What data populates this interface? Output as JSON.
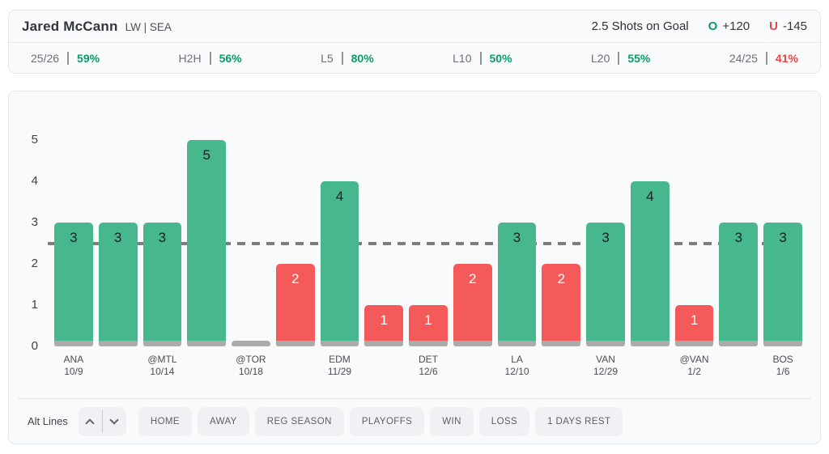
{
  "header": {
    "player_name": "Jared McCann",
    "player_meta": "LW | SEA",
    "prop_label": "2.5 Shots on Goal",
    "over": {
      "letter": "O",
      "odds": "+120"
    },
    "under": {
      "letter": "U",
      "odds": "-145"
    }
  },
  "stats": [
    {
      "label": "25/26",
      "value": "59%",
      "status": "positive"
    },
    {
      "label": "H2H",
      "value": "56%",
      "status": "positive"
    },
    {
      "label": "L5",
      "value": "80%",
      "status": "positive"
    },
    {
      "label": "L10",
      "value": "50%",
      "status": "positive"
    },
    {
      "label": "L20",
      "value": "55%",
      "status": "positive"
    },
    {
      "label": "24/25",
      "value": "41%",
      "status": "negative"
    }
  ],
  "chart_data": {
    "type": "bar",
    "title": "",
    "xlabel": "",
    "ylabel": "",
    "ylim": [
      0,
      5
    ],
    "yticks": [
      0,
      1,
      2,
      3,
      4,
      5
    ],
    "grid": false,
    "reference_line": 2.5,
    "bars": [
      {
        "value": 3,
        "result": "over",
        "team": "ANA",
        "date": "10/9"
      },
      {
        "value": 3,
        "result": "over"
      },
      {
        "value": 3,
        "result": "over",
        "team": "@MTL",
        "date": "10/14"
      },
      {
        "value": 5,
        "result": "over"
      },
      {
        "value": 0,
        "result": "under",
        "team": "@TOR",
        "date": "10/18"
      },
      {
        "value": 2,
        "result": "under"
      },
      {
        "value": 4,
        "result": "over",
        "team": "EDM",
        "date": "11/29"
      },
      {
        "value": 1,
        "result": "under"
      },
      {
        "value": 1,
        "result": "under",
        "team": "DET",
        "date": "12/6"
      },
      {
        "value": 2,
        "result": "under"
      },
      {
        "value": 3,
        "result": "over",
        "team": "LA",
        "date": "12/10"
      },
      {
        "value": 2,
        "result": "under"
      },
      {
        "value": 3,
        "result": "over",
        "team": "VAN",
        "date": "12/29"
      },
      {
        "value": 4,
        "result": "over"
      },
      {
        "value": 1,
        "result": "under",
        "team": "@VAN",
        "date": "1/2"
      },
      {
        "value": 3,
        "result": "over"
      },
      {
        "value": 3,
        "result": "over",
        "team": "BOS",
        "date": "1/6"
      }
    ]
  },
  "colors": {
    "accent_green": "#0a9c66",
    "accent_red": "#ee4343",
    "bar_over": "#47b78e",
    "bar_under": "#f45a5a",
    "bar_zero_base": "#ababab",
    "reference_line": "#7d7d7d",
    "bar_label_over": "#1c1f23",
    "bar_label_under": "#ffffff"
  },
  "footer": {
    "alt_lines_label": "Alt Lines",
    "stepper_icons": {
      "up": "chevron-up-icon",
      "down": "chevron-down-icon"
    },
    "filters": [
      "HOME",
      "AWAY",
      "REG SEASON",
      "PLAYOFFS",
      "WIN",
      "LOSS",
      "1 DAYS REST"
    ]
  }
}
